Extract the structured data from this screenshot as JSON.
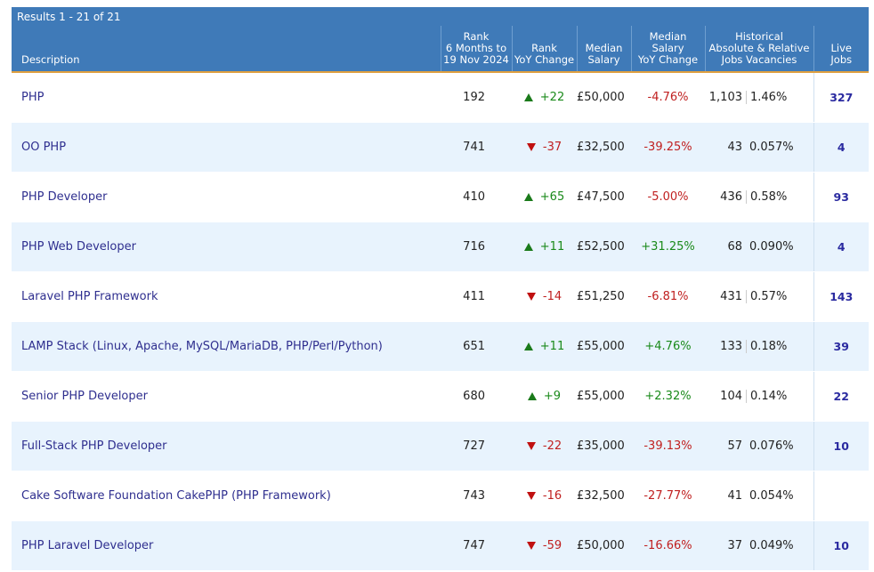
{
  "results_label": "Results 1 - 21 of 21",
  "headers": {
    "description": "Description",
    "rank": [
      "Rank",
      "6 Months to",
      "19 Nov 2024"
    ],
    "rank_change": [
      "Rank",
      "YoY Change"
    ],
    "median_salary": [
      "Median",
      "Salary"
    ],
    "salary_change": [
      "Median Salary",
      "YoY Change"
    ],
    "historical": [
      "Historical",
      "Absolute & Relative",
      "Jobs Vacancies"
    ],
    "live_jobs": [
      "Live",
      "Jobs"
    ]
  },
  "rows": [
    {
      "desc": "PHP",
      "rank": "192",
      "dir": "up",
      "change": "+22",
      "salary": "£50,000",
      "sal_dir": "down",
      "sal_change": "-4.76%",
      "abs": "1,103",
      "rel": "1.46%",
      "live": "327"
    },
    {
      "desc": "OO PHP",
      "rank": "741",
      "dir": "down",
      "change": "-37",
      "salary": "£32,500",
      "sal_dir": "down",
      "sal_change": "-39.25%",
      "abs": "43",
      "rel": "0.057%",
      "live": "4"
    },
    {
      "desc": "PHP Developer",
      "rank": "410",
      "dir": "up",
      "change": "+65",
      "salary": "£47,500",
      "sal_dir": "down",
      "sal_change": "-5.00%",
      "abs": "436",
      "rel": "0.58%",
      "live": "93"
    },
    {
      "desc": "PHP Web Developer",
      "rank": "716",
      "dir": "up",
      "change": "+11",
      "salary": "£52,500",
      "sal_dir": "up",
      "sal_change": "+31.25%",
      "abs": "68",
      "rel": "0.090%",
      "live": "4"
    },
    {
      "desc": "Laravel PHP Framework",
      "rank": "411",
      "dir": "down",
      "change": "-14",
      "salary": "£51,250",
      "sal_dir": "down",
      "sal_change": "-6.81%",
      "abs": "431",
      "rel": "0.57%",
      "live": "143"
    },
    {
      "desc": "LAMP Stack (Linux, Apache, MySQL/MariaDB, PHP/Perl/Python)",
      "rank": "651",
      "dir": "up",
      "change": "+11",
      "salary": "£55,000",
      "sal_dir": "up",
      "sal_change": "+4.76%",
      "abs": "133",
      "rel": "0.18%",
      "live": "39"
    },
    {
      "desc": "Senior PHP Developer",
      "rank": "680",
      "dir": "up",
      "change": "+9",
      "salary": "£55,000",
      "sal_dir": "up",
      "sal_change": "+2.32%",
      "abs": "104",
      "rel": "0.14%",
      "live": "22"
    },
    {
      "desc": "Full-Stack PHP Developer",
      "rank": "727",
      "dir": "down",
      "change": "-22",
      "salary": "£35,000",
      "sal_dir": "down",
      "sal_change": "-39.13%",
      "abs": "57",
      "rel": "0.076%",
      "live": "10"
    },
    {
      "desc": "Cake Software Foundation CakePHP (PHP Framework)",
      "rank": "743",
      "dir": "down",
      "change": "-16",
      "salary": "£32,500",
      "sal_dir": "down",
      "sal_change": "-27.77%",
      "abs": "41",
      "rel": "0.054%",
      "live": ""
    },
    {
      "desc": "PHP Laravel Developer",
      "rank": "747",
      "dir": "down",
      "change": "-59",
      "salary": "£50,000",
      "sal_dir": "down",
      "sal_change": "-16.66%",
      "abs": "37",
      "rel": "0.049%",
      "live": "10"
    }
  ],
  "colors": {
    "header_bg": "#3f7ab8",
    "row_alt": "#e8f3fd",
    "up": "#1a8a1a",
    "down": "#c02020",
    "link": "#2f2f8f"
  }
}
